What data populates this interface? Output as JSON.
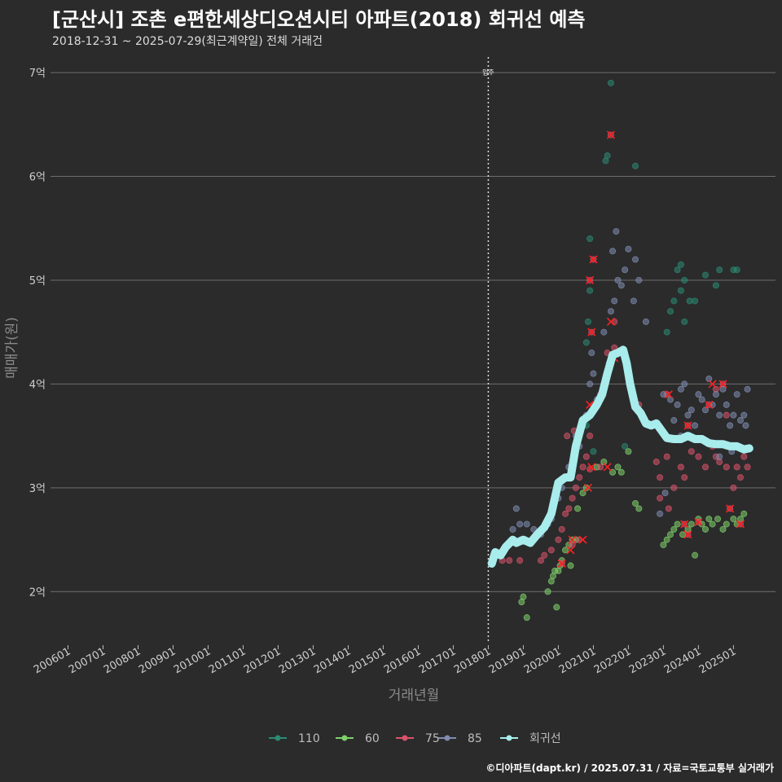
{
  "header": {
    "title": "[군산시] 조촌 e편한세상디오션시티 아파트(2018) 회귀선 예측",
    "subtitle": "2018-12-31 ~ 2025-07-29(최근계약일) 전체 거래건"
  },
  "caption": "©디아파트(dapt.kr) / 2025.07.31 / 자료=국토교통부 실거래가",
  "colors": {
    "background": "#2b2b2c",
    "grid": "#6e6e6e",
    "s110": "#2a8a73",
    "s60": "#7fd16a",
    "s75": "#d9536a",
    "s85": "#7f8db0",
    "regression": "#a8ecec",
    "highlight": "#ff2020"
  },
  "chart_data": {
    "type": "scatter",
    "title": "[군산시] 조촌 e편한세상디오션시티 아파트(2018) 회귀선 예측",
    "xlabel": "거래년월",
    "ylabel": "매매가(원)",
    "xlim": [
      2005.5,
      2026.2
    ],
    "ylim": [
      1.5,
      7.15
    ],
    "y_ticks": [
      {
        "value": 2,
        "label": "2억"
      },
      {
        "value": 3,
        "label": "3억"
      },
      {
        "value": 4,
        "label": "4억"
      },
      {
        "value": 5,
        "label": "5억"
      },
      {
        "value": 6,
        "label": "6억"
      },
      {
        "value": 7,
        "label": "7억"
      }
    ],
    "x_ticks": [
      {
        "value": 2006,
        "label": "200601"
      },
      {
        "value": 2007,
        "label": "200701"
      },
      {
        "value": 2008,
        "label": "200801"
      },
      {
        "value": 2009,
        "label": "200901"
      },
      {
        "value": 2010,
        "label": "201001"
      },
      {
        "value": 2011,
        "label": "201101"
      },
      {
        "value": 2012,
        "label": "201201"
      },
      {
        "value": 2013,
        "label": "201301"
      },
      {
        "value": 2014,
        "label": "201401"
      },
      {
        "value": 2015,
        "label": "201501"
      },
      {
        "value": 2016,
        "label": "201601"
      },
      {
        "value": 2017,
        "label": "201701"
      },
      {
        "value": 2018,
        "label": "201801"
      },
      {
        "value": 2019,
        "label": "201901"
      },
      {
        "value": 2020,
        "label": "202001"
      },
      {
        "value": 2021,
        "label": "202101"
      },
      {
        "value": 2022,
        "label": "202201"
      },
      {
        "value": 2023,
        "label": "202301"
      },
      {
        "value": 2024,
        "label": "202401"
      },
      {
        "value": 2025,
        "label": "202501"
      }
    ],
    "vline": {
      "x": 2018.0,
      "label": "입주"
    },
    "legend": [
      "110",
      "60",
      "75",
      "85",
      "회귀선"
    ],
    "series": [
      {
        "name": "110",
        "points": [
          [
            2020.2,
            3.1
          ],
          [
            2020.6,
            3.5
          ],
          [
            2020.8,
            3.6
          ],
          [
            2020.8,
            4.4
          ],
          [
            2020.85,
            4.6
          ],
          [
            2020.9,
            4.9
          ],
          [
            2020.9,
            5.4
          ],
          [
            2021.35,
            6.15
          ],
          [
            2021.4,
            6.2
          ],
          [
            2021.5,
            6.9
          ],
          [
            2022.2,
            6.1
          ],
          [
            2021.9,
            3.4
          ],
          [
            2021.0,
            3.35
          ],
          [
            2023.1,
            4.5
          ],
          [
            2023.2,
            4.7
          ],
          [
            2023.3,
            4.8
          ],
          [
            2023.4,
            5.1
          ],
          [
            2023.5,
            5.15
          ],
          [
            2023.5,
            4.9
          ],
          [
            2023.6,
            5.0
          ],
          [
            2023.75,
            4.8
          ],
          [
            2023.9,
            4.8
          ],
          [
            2024.2,
            5.05
          ],
          [
            2024.5,
            4.95
          ],
          [
            2024.6,
            5.1
          ],
          [
            2025.0,
            5.1
          ],
          [
            2025.1,
            5.1
          ],
          [
            2023.6,
            4.6
          ]
        ]
      },
      {
        "name": "60",
        "points": [
          [
            2018.95,
            1.9
          ],
          [
            2019.0,
            1.95
          ],
          [
            2019.1,
            1.75
          ],
          [
            2019.7,
            2.0
          ],
          [
            2019.8,
            2.1
          ],
          [
            2019.85,
            2.15
          ],
          [
            2019.9,
            2.2
          ],
          [
            2019.95,
            1.85
          ],
          [
            2020.0,
            2.2
          ],
          [
            2020.05,
            2.25
          ],
          [
            2020.1,
            2.3
          ],
          [
            2020.2,
            2.4
          ],
          [
            2020.3,
            2.45
          ],
          [
            2020.4,
            2.5
          ],
          [
            2020.5,
            2.5
          ],
          [
            2020.55,
            2.8
          ],
          [
            2020.7,
            2.95
          ],
          [
            2020.8,
            3.0
          ],
          [
            2021.1,
            3.2
          ],
          [
            2021.3,
            3.25
          ],
          [
            2021.55,
            3.15
          ],
          [
            2021.7,
            3.2
          ],
          [
            2021.8,
            3.15
          ],
          [
            2022.0,
            3.35
          ],
          [
            2022.2,
            2.85
          ],
          [
            2022.3,
            2.8
          ],
          [
            2023.0,
            2.45
          ],
          [
            2023.1,
            2.5
          ],
          [
            2023.2,
            2.55
          ],
          [
            2023.3,
            2.6
          ],
          [
            2023.4,
            2.65
          ],
          [
            2023.55,
            2.55
          ],
          [
            2023.7,
            2.6
          ],
          [
            2023.8,
            2.65
          ],
          [
            2024.0,
            2.7
          ],
          [
            2024.2,
            2.6
          ],
          [
            2024.3,
            2.7
          ],
          [
            2024.4,
            2.65
          ],
          [
            2024.55,
            2.7
          ],
          [
            2024.7,
            2.6
          ],
          [
            2024.8,
            2.65
          ],
          [
            2025.0,
            2.7
          ],
          [
            2025.2,
            2.7
          ],
          [
            2025.3,
            2.75
          ],
          [
            2025.1,
            2.65
          ],
          [
            2023.9,
            2.35
          ],
          [
            2024.1,
            2.65
          ],
          [
            2020.35,
            2.25
          ]
        ]
      },
      {
        "name": "75",
        "points": [
          [
            2018.4,
            2.3
          ],
          [
            2018.6,
            2.3
          ],
          [
            2018.9,
            2.3
          ],
          [
            2019.5,
            2.3
          ],
          [
            2019.6,
            2.35
          ],
          [
            2019.8,
            2.4
          ],
          [
            2020.0,
            2.5
          ],
          [
            2020.1,
            2.6
          ],
          [
            2020.2,
            2.75
          ],
          [
            2020.3,
            2.8
          ],
          [
            2020.4,
            2.9
          ],
          [
            2020.5,
            3.0
          ],
          [
            2020.6,
            3.1
          ],
          [
            2020.7,
            3.2
          ],
          [
            2020.8,
            3.3
          ],
          [
            2020.9,
            3.5
          ],
          [
            2021.0,
            3.8
          ],
          [
            2021.2,
            3.9
          ],
          [
            2021.4,
            4.3
          ],
          [
            2021.6,
            4.35
          ],
          [
            2021.8,
            4.3
          ],
          [
            2022.1,
            3.9
          ],
          [
            2022.3,
            3.8
          ],
          [
            2022.6,
            3.6
          ],
          [
            2022.8,
            3.25
          ],
          [
            2022.9,
            3.1
          ],
          [
            2023.1,
            3.3
          ],
          [
            2023.3,
            3.0
          ],
          [
            2023.5,
            3.2
          ],
          [
            2023.6,
            3.1
          ],
          [
            2023.8,
            3.35
          ],
          [
            2024.0,
            3.3
          ],
          [
            2024.2,
            3.2
          ],
          [
            2024.4,
            3.4
          ],
          [
            2024.5,
            3.3
          ],
          [
            2024.6,
            3.25
          ],
          [
            2024.8,
            3.2
          ],
          [
            2025.0,
            3.0
          ],
          [
            2025.1,
            3.2
          ],
          [
            2025.2,
            3.1
          ],
          [
            2025.3,
            3.3
          ],
          [
            2025.4,
            3.2
          ],
          [
            2025.2,
            2.65
          ],
          [
            2024.9,
            2.8
          ],
          [
            2023.6,
            2.65
          ],
          [
            2024.0,
            2.67
          ],
          [
            2023.7,
            2.55
          ],
          [
            2021.2,
            3.2
          ],
          [
            2020.9,
            3.18
          ],
          [
            2020.6,
            2.5
          ],
          [
            2020.4,
            2.45
          ],
          [
            2020.1,
            2.27
          ],
          [
            2021.0,
            3.75
          ],
          [
            2020.9,
            5.0
          ],
          [
            2021.0,
            5.2
          ],
          [
            2021.5,
            6.4
          ],
          [
            2021.6,
            4.6
          ],
          [
            2020.95,
            4.5
          ],
          [
            2023.1,
            3.9
          ],
          [
            2023.7,
            3.6
          ],
          [
            2024.5,
            3.95
          ],
          [
            2024.7,
            4.0
          ],
          [
            2024.3,
            3.8
          ],
          [
            2024.8,
            3.7
          ],
          [
            2022.9,
            2.9
          ],
          [
            2023.15,
            2.8
          ],
          [
            2020.45,
            3.55
          ],
          [
            2020.25,
            3.5
          ]
        ]
      },
      {
        "name": "85",
        "points": [
          [
            2018.7,
            2.6
          ],
          [
            2018.9,
            2.65
          ],
          [
            2019.1,
            2.65
          ],
          [
            2019.3,
            2.6
          ],
          [
            2019.5,
            2.55
          ],
          [
            2019.8,
            2.7
          ],
          [
            2020.0,
            2.9
          ],
          [
            2020.1,
            3.0
          ],
          [
            2020.3,
            3.2
          ],
          [
            2020.5,
            3.5
          ],
          [
            2020.7,
            3.6
          ],
          [
            2020.8,
            3.7
          ],
          [
            2020.9,
            4.0
          ],
          [
            2021.0,
            4.1
          ],
          [
            2021.1,
            3.85
          ],
          [
            2021.3,
            4.5
          ],
          [
            2021.5,
            4.7
          ],
          [
            2021.6,
            4.8
          ],
          [
            2021.7,
            5.0
          ],
          [
            2021.9,
            5.1
          ],
          [
            2022.0,
            5.3
          ],
          [
            2022.2,
            5.2
          ],
          [
            2022.3,
            5.0
          ],
          [
            2022.5,
            4.6
          ],
          [
            2021.55,
            5.28
          ],
          [
            2021.65,
            5.47
          ],
          [
            2021.8,
            4.95
          ],
          [
            2022.15,
            4.8
          ],
          [
            2023.0,
            3.9
          ],
          [
            2023.2,
            3.85
          ],
          [
            2023.4,
            3.8
          ],
          [
            2023.5,
            3.95
          ],
          [
            2023.6,
            4.0
          ],
          [
            2023.7,
            3.7
          ],
          [
            2023.8,
            3.75
          ],
          [
            2024.0,
            3.9
          ],
          [
            2024.1,
            3.85
          ],
          [
            2024.3,
            4.05
          ],
          [
            2024.4,
            3.8
          ],
          [
            2024.5,
            3.9
          ],
          [
            2024.6,
            3.7
          ],
          [
            2024.7,
            3.95
          ],
          [
            2024.8,
            3.8
          ],
          [
            2024.9,
            3.6
          ],
          [
            2025.0,
            3.7
          ],
          [
            2025.1,
            3.9
          ],
          [
            2025.2,
            3.65
          ],
          [
            2025.3,
            3.7
          ],
          [
            2025.35,
            3.6
          ],
          [
            2025.4,
            3.95
          ],
          [
            2023.3,
            3.65
          ],
          [
            2023.5,
            3.5
          ],
          [
            2023.9,
            3.6
          ],
          [
            2024.2,
            3.75
          ],
          [
            2018.8,
            2.8
          ],
          [
            2019.7,
            2.65
          ],
          [
            2020.6,
            3.4
          ],
          [
            2020.95,
            4.3
          ],
          [
            2021.45,
            4.2
          ],
          [
            2023.05,
            2.95
          ],
          [
            2022.9,
            2.75
          ],
          [
            2024.6,
            3.3
          ],
          [
            2024.95,
            3.35
          ]
        ]
      }
    ],
    "highlighted_points": [
      [
        2021.5,
        6.4
      ],
      [
        2021.0,
        5.2
      ],
      [
        2020.9,
        5.0
      ],
      [
        2020.95,
        4.5
      ],
      [
        2021.5,
        4.6
      ],
      [
        2021.6,
        4.25
      ],
      [
        2020.9,
        3.8
      ],
      [
        2020.95,
        3.2
      ],
      [
        2020.85,
        3.0
      ],
      [
        2020.4,
        2.5
      ],
      [
        2020.35,
        2.4
      ],
      [
        2020.7,
        2.5
      ],
      [
        2020.1,
        2.27
      ],
      [
        2021.4,
        3.2
      ],
      [
        2023.15,
        3.9
      ],
      [
        2023.7,
        3.6
      ],
      [
        2024.4,
        4.0
      ],
      [
        2024.7,
        4.0
      ],
      [
        2024.3,
        3.8
      ],
      [
        2023.6,
        2.65
      ],
      [
        2024.0,
        2.67
      ],
      [
        2023.7,
        2.55
      ],
      [
        2025.2,
        2.65
      ],
      [
        2024.9,
        2.8
      ]
    ],
    "regression": [
      [
        2018.1,
        2.27
      ],
      [
        2018.2,
        2.38
      ],
      [
        2018.35,
        2.35
      ],
      [
        2018.5,
        2.43
      ],
      [
        2018.7,
        2.5
      ],
      [
        2018.8,
        2.47
      ],
      [
        2019.0,
        2.5
      ],
      [
        2019.2,
        2.47
      ],
      [
        2019.4,
        2.55
      ],
      [
        2019.6,
        2.62
      ],
      [
        2019.8,
        2.75
      ],
      [
        2020.0,
        3.05
      ],
      [
        2020.2,
        3.1
      ],
      [
        2020.35,
        3.1
      ],
      [
        2020.5,
        3.4
      ],
      [
        2020.7,
        3.65
      ],
      [
        2020.9,
        3.7
      ],
      [
        2021.1,
        3.8
      ],
      [
        2021.25,
        3.9
      ],
      [
        2021.4,
        4.1
      ],
      [
        2021.55,
        4.28
      ],
      [
        2021.7,
        4.3
      ],
      [
        2021.85,
        4.33
      ],
      [
        2021.95,
        4.2
      ],
      [
        2022.05,
        4.0
      ],
      [
        2022.2,
        3.78
      ],
      [
        2022.35,
        3.72
      ],
      [
        2022.5,
        3.62
      ],
      [
        2022.65,
        3.6
      ],
      [
        2022.8,
        3.62
      ],
      [
        2022.95,
        3.55
      ],
      [
        2023.1,
        3.48
      ],
      [
        2023.3,
        3.47
      ],
      [
        2023.5,
        3.47
      ],
      [
        2023.7,
        3.5
      ],
      [
        2023.9,
        3.47
      ],
      [
        2024.1,
        3.47
      ],
      [
        2024.3,
        3.43
      ],
      [
        2024.5,
        3.42
      ],
      [
        2024.7,
        3.42
      ],
      [
        2024.9,
        3.4
      ],
      [
        2025.1,
        3.4
      ],
      [
        2025.3,
        3.37
      ],
      [
        2025.45,
        3.38
      ]
    ]
  }
}
